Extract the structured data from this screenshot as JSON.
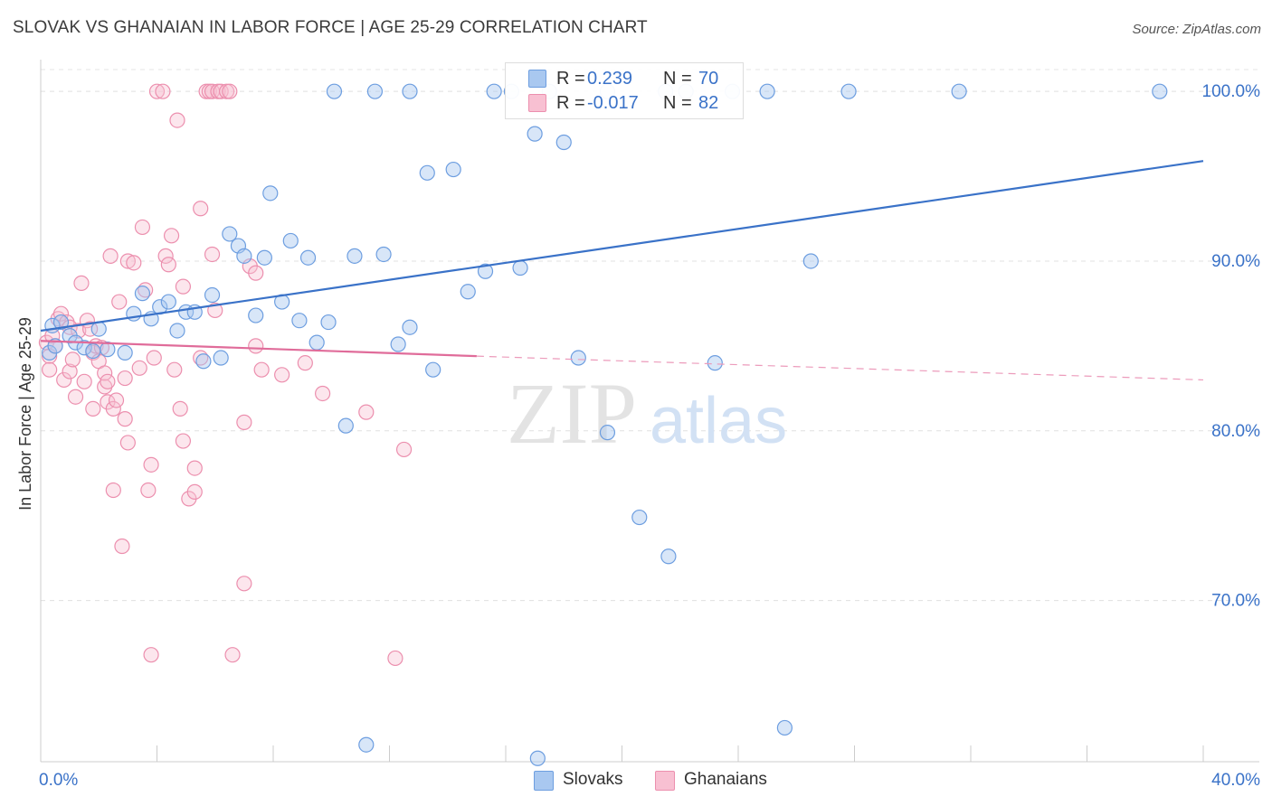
{
  "header": {
    "title": "SLOVAK VS GHANAIAN IN LABOR FORCE | AGE 25-29 CORRELATION CHART",
    "source": "Source: ZipAtlas.com"
  },
  "watermark": {
    "zip": "ZIP",
    "atlas": "atlas"
  },
  "legend": {
    "r_label": "R =",
    "n_label": "N =",
    "rows": [
      {
        "r": "0.239",
        "n": "70",
        "color": "#a9c8f0",
        "stroke": "#6d9ee0"
      },
      {
        "r": "-0.017",
        "n": "82",
        "color": "#f8c0d2",
        "stroke": "#ec8fae"
      }
    ]
  },
  "bottom_legend": [
    {
      "label": "Slovaks",
      "color": "#a9c8f0",
      "stroke": "#6d9ee0"
    },
    {
      "label": "Ghanaians",
      "color": "#f8c0d2",
      "stroke": "#ec8fae"
    }
  ],
  "chart_data": {
    "type": "scatter",
    "title": "SLOVAK VS GHANAIAN IN LABOR FORCE | AGE 25-29 CORRELATION CHART",
    "xlabel": "",
    "ylabel": "In Labor Force | Age 25-29",
    "xlim": [
      0,
      40
    ],
    "ylim": [
      60.5,
      101.5
    ],
    "x_tick_labels": [
      {
        "value": 0,
        "label": "0.0%"
      },
      {
        "value": 40,
        "label": "40.0%"
      }
    ],
    "y_tick_labels": [
      {
        "value": 100,
        "label": "100.0%"
      },
      {
        "value": 90,
        "label": "90.0%"
      },
      {
        "value": 80,
        "label": "80.0%"
      },
      {
        "value": 70,
        "label": "70.0%"
      }
    ],
    "x_minor_ticks": [
      4,
      8,
      12,
      16,
      20,
      24,
      28,
      32,
      36
    ],
    "grid": true,
    "legend_position": "top-center",
    "colors": {
      "Slovaks": "#3a72c8",
      "Ghanaians": "#e06c9a"
    },
    "series": [
      {
        "name": "Slovaks",
        "r": 0.239,
        "n": 70,
        "trend": {
          "x": [
            0,
            40
          ],
          "y": [
            85.9,
            95.9
          ]
        },
        "points": [
          [
            0.3,
            84.6
          ],
          [
            0.4,
            86.2
          ],
          [
            0.5,
            85.0
          ],
          [
            0.7,
            86.4
          ],
          [
            1.0,
            85.6
          ],
          [
            1.2,
            85.2
          ],
          [
            1.5,
            84.9
          ],
          [
            1.8,
            84.7
          ],
          [
            2.0,
            86.0
          ],
          [
            2.3,
            84.8
          ],
          [
            2.9,
            84.6
          ],
          [
            3.2,
            86.9
          ],
          [
            3.5,
            88.1
          ],
          [
            3.8,
            86.6
          ],
          [
            4.1,
            87.3
          ],
          [
            4.4,
            87.6
          ],
          [
            4.7,
            85.9
          ],
          [
            5.0,
            87.0
          ],
          [
            5.3,
            87.0
          ],
          [
            5.6,
            84.1
          ],
          [
            5.9,
            88.0
          ],
          [
            6.2,
            84.3
          ],
          [
            6.5,
            91.6
          ],
          [
            6.8,
            90.9
          ],
          [
            7.0,
            90.3
          ],
          [
            7.4,
            86.8
          ],
          [
            7.7,
            90.2
          ],
          [
            7.9,
            94.0
          ],
          [
            8.3,
            87.6
          ],
          [
            8.6,
            91.2
          ],
          [
            8.9,
            86.5
          ],
          [
            9.2,
            90.2
          ],
          [
            9.5,
            85.2
          ],
          [
            9.9,
            86.4
          ],
          [
            10.1,
            100.0
          ],
          [
            10.5,
            80.3
          ],
          [
            10.8,
            90.3
          ],
          [
            11.2,
            61.5
          ],
          [
            11.5,
            100.0
          ],
          [
            11.8,
            90.4
          ],
          [
            12.3,
            85.1
          ],
          [
            12.7,
            86.1
          ],
          [
            12.7,
            100.0
          ],
          [
            13.3,
            95.2
          ],
          [
            13.5,
            83.6
          ],
          [
            14.2,
            95.4
          ],
          [
            14.7,
            88.2
          ],
          [
            15.3,
            89.4
          ],
          [
            15.6,
            100.0
          ],
          [
            16.2,
            100.0
          ],
          [
            16.5,
            89.6
          ],
          [
            17.0,
            97.5
          ],
          [
            17.1,
            60.7
          ],
          [
            17.5,
            100.0
          ],
          [
            18.0,
            97.0
          ],
          [
            18.5,
            84.3
          ],
          [
            19.5,
            100.0
          ],
          [
            19.5,
            79.9
          ],
          [
            20.6,
            74.9
          ],
          [
            21.5,
            100.0
          ],
          [
            21.6,
            72.6
          ],
          [
            22.2,
            100.0
          ],
          [
            23.2,
            84.0
          ],
          [
            23.8,
            100.0
          ],
          [
            25.0,
            100.0
          ],
          [
            25.6,
            62.5
          ],
          [
            26.5,
            90.0
          ],
          [
            27.8,
            100.0
          ],
          [
            31.6,
            100.0
          ],
          [
            38.5,
            100.0
          ]
        ]
      },
      {
        "name": "Ghanaians",
        "r": -0.017,
        "n": 82,
        "trend": {
          "x": [
            0,
            15
          ],
          "y": [
            85.3,
            84.4
          ]
        },
        "trend_extrapolated": {
          "x": [
            15,
            40
          ],
          "y": [
            84.4,
            83.0
          ]
        },
        "points": [
          [
            0.2,
            85.2
          ],
          [
            0.3,
            84.4
          ],
          [
            0.3,
            83.6
          ],
          [
            0.4,
            85.6
          ],
          [
            0.5,
            85.0
          ],
          [
            0.6,
            86.6
          ],
          [
            0.7,
            86.9
          ],
          [
            0.8,
            83.0
          ],
          [
            0.9,
            86.4
          ],
          [
            1.0,
            86.1
          ],
          [
            1.0,
            83.5
          ],
          [
            1.1,
            84.2
          ],
          [
            1.2,
            82.0
          ],
          [
            1.3,
            85.9
          ],
          [
            1.4,
            88.7
          ],
          [
            1.5,
            82.9
          ],
          [
            1.6,
            86.5
          ],
          [
            1.7,
            86.0
          ],
          [
            1.8,
            84.6
          ],
          [
            1.8,
            81.3
          ],
          [
            1.9,
            85.0
          ],
          [
            2.0,
            84.1
          ],
          [
            2.1,
            84.9
          ],
          [
            2.2,
            82.6
          ],
          [
            2.2,
            83.4
          ],
          [
            2.3,
            81.7
          ],
          [
            2.3,
            82.9
          ],
          [
            2.4,
            90.3
          ],
          [
            2.5,
            81.3
          ],
          [
            2.5,
            76.5
          ],
          [
            2.6,
            81.8
          ],
          [
            2.7,
            87.6
          ],
          [
            2.8,
            73.2
          ],
          [
            2.9,
            83.1
          ],
          [
            2.9,
            80.7
          ],
          [
            3.0,
            90.0
          ],
          [
            3.0,
            79.3
          ],
          [
            3.2,
            89.9
          ],
          [
            3.4,
            83.7
          ],
          [
            3.5,
            92.0
          ],
          [
            3.6,
            88.3
          ],
          [
            3.7,
            76.5
          ],
          [
            3.8,
            66.8
          ],
          [
            3.8,
            78.0
          ],
          [
            3.9,
            84.3
          ],
          [
            4.0,
            100.0
          ],
          [
            4.2,
            100.0
          ],
          [
            4.3,
            90.3
          ],
          [
            4.4,
            89.8
          ],
          [
            4.5,
            91.5
          ],
          [
            4.6,
            83.6
          ],
          [
            4.7,
            98.3
          ],
          [
            4.8,
            81.3
          ],
          [
            4.9,
            79.4
          ],
          [
            4.9,
            88.5
          ],
          [
            5.1,
            76.0
          ],
          [
            5.3,
            77.8
          ],
          [
            5.3,
            76.4
          ],
          [
            5.5,
            93.1
          ],
          [
            5.5,
            84.3
          ],
          [
            5.7,
            100.0
          ],
          [
            5.8,
            100.0
          ],
          [
            5.9,
            90.4
          ],
          [
            5.9,
            100.0
          ],
          [
            6.0,
            87.1
          ],
          [
            6.1,
            100.0
          ],
          [
            6.2,
            100.0
          ],
          [
            6.4,
            100.0
          ],
          [
            6.5,
            100.0
          ],
          [
            6.6,
            66.8
          ],
          [
            7.0,
            80.5
          ],
          [
            7.0,
            71.0
          ],
          [
            7.2,
            89.7
          ],
          [
            7.4,
            85.0
          ],
          [
            7.4,
            89.3
          ],
          [
            7.6,
            83.6
          ],
          [
            8.3,
            83.3
          ],
          [
            9.1,
            84.0
          ],
          [
            9.7,
            82.2
          ],
          [
            11.2,
            81.1
          ],
          [
            12.2,
            66.6
          ],
          [
            12.5,
            78.9
          ]
        ]
      }
    ]
  }
}
